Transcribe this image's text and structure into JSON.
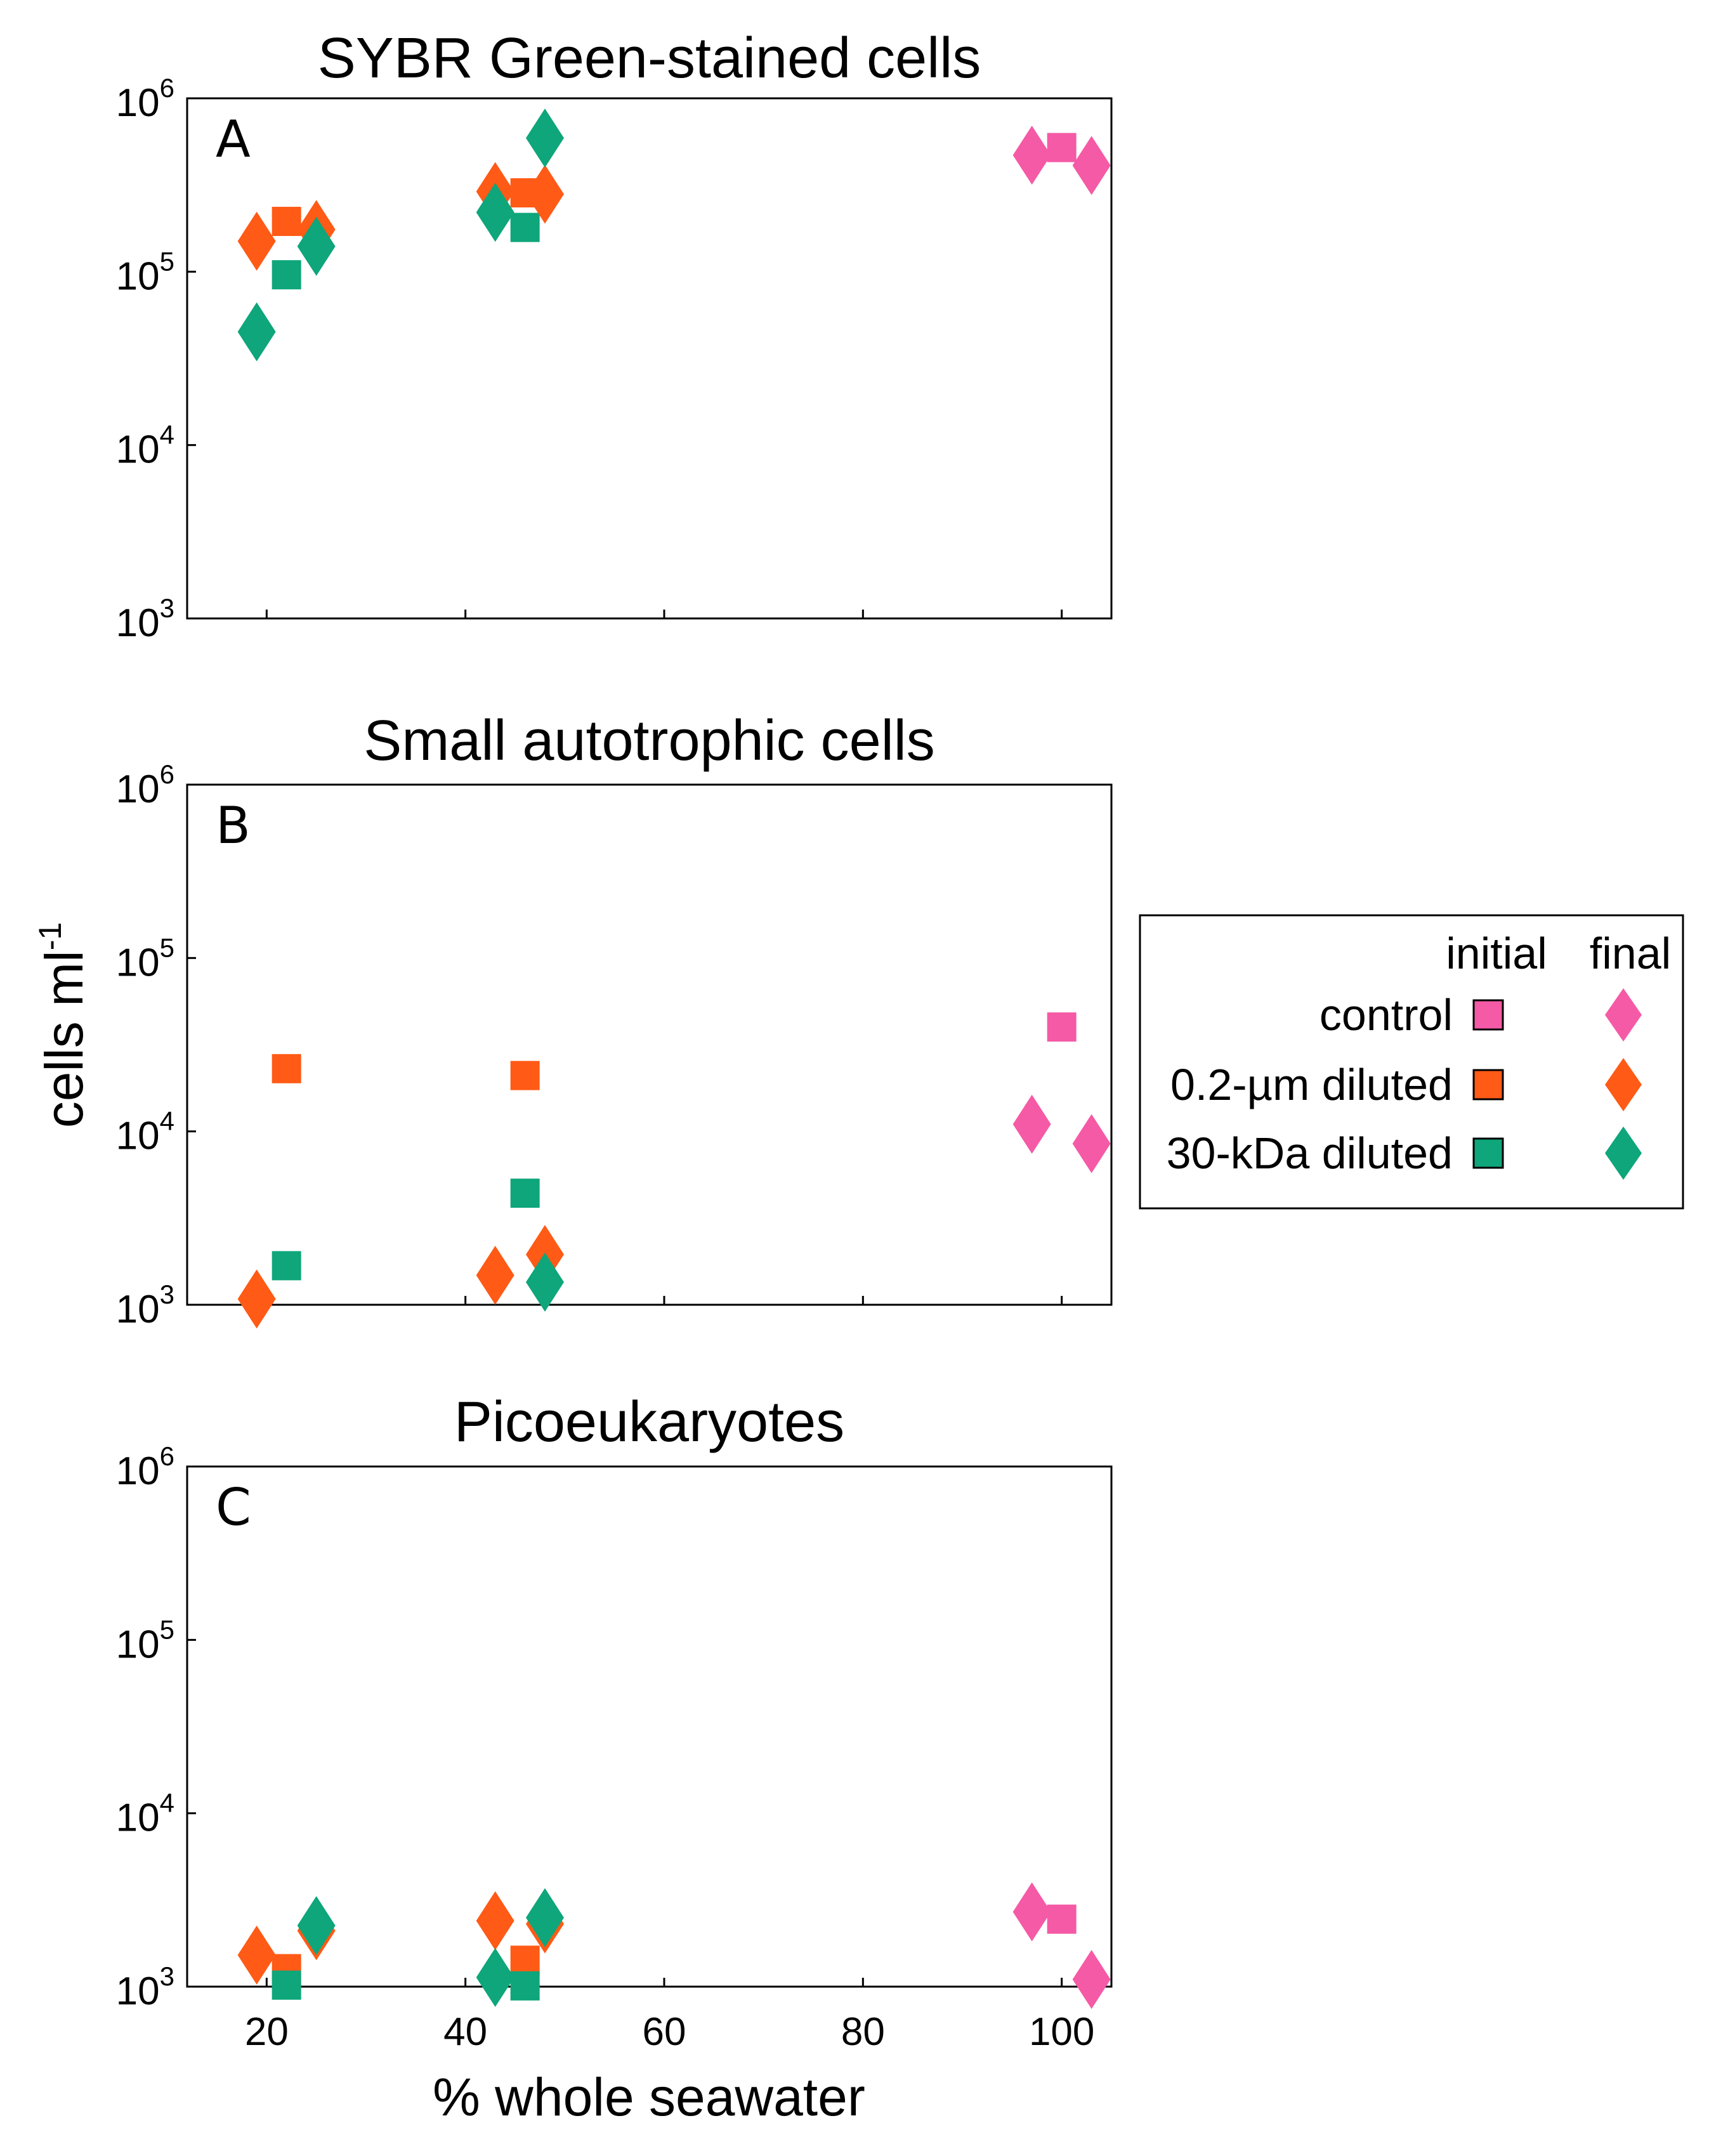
{
  "chart_data": [
    {
      "type": "scatter",
      "title": "SYBR Green-stained cells",
      "panel_label": "A",
      "xlabel": "% whole seawater",
      "ylabel": "cells ml-1",
      "xlim": [
        12,
        105
      ],
      "ylim_log10": [
        3,
        6
      ],
      "y_scale": "log",
      "series": [
        {
          "name": "control",
          "phase": "initial",
          "marker": "square",
          "color": "#f55aa6",
          "points": [
            [
              100,
              520000
            ]
          ]
        },
        {
          "name": "control",
          "phase": "final",
          "marker": "diamond",
          "color": "#f55aa6",
          "points": [
            [
              97,
              470000
            ],
            [
              103,
              410000
            ]
          ]
        },
        {
          "name": "0.2-µm diluted",
          "phase": "initial",
          "marker": "square",
          "color": "#ff5a16",
          "points": [
            [
              22,
              195000
            ],
            [
              46,
              285000
            ]
          ]
        },
        {
          "name": "0.2-µm diluted",
          "phase": "final",
          "marker": "diamond",
          "color": "#ff5a16",
          "points": [
            [
              19,
              150000
            ],
            [
              25,
              175000
            ],
            [
              43,
              290000
            ],
            [
              48,
              280000
            ]
          ]
        },
        {
          "name": "30-kDa diluted",
          "phase": "initial",
          "marker": "square",
          "color": "#0ea67a",
          "points": [
            [
              22,
              96000
            ],
            [
              46,
              180000
            ]
          ]
        },
        {
          "name": "30-kDa diluted",
          "phase": "final",
          "marker": "diamond",
          "color": "#0ea67a",
          "points": [
            [
              19,
              45000
            ],
            [
              25,
              140000
            ],
            [
              43,
              220000
            ],
            [
              48,
              590000
            ]
          ]
        }
      ]
    },
    {
      "type": "scatter",
      "title": "Small autotrophic cells",
      "panel_label": "B",
      "xlabel": "% whole seawater",
      "ylabel": "cells ml-1",
      "xlim": [
        12,
        105
      ],
      "ylim_log10": [
        3,
        6
      ],
      "y_scale": "log",
      "series": [
        {
          "name": "control",
          "phase": "initial",
          "marker": "square",
          "color": "#f55aa6",
          "points": [
            [
              100,
              40000
            ]
          ]
        },
        {
          "name": "control",
          "phase": "final",
          "marker": "diamond",
          "color": "#f55aa6",
          "points": [
            [
              97,
              11000
            ],
            [
              103,
              8500
            ]
          ]
        },
        {
          "name": "0.2-µm diluted",
          "phase": "initial",
          "marker": "square",
          "color": "#ff5a16",
          "points": [
            [
              22,
              23000
            ],
            [
              46,
              21000
            ]
          ]
        },
        {
          "name": "0.2-µm diluted",
          "phase": "final",
          "marker": "diamond",
          "color": "#ff5a16",
          "points": [
            [
              19,
              1080
            ],
            [
              43,
              1480
            ],
            [
              48,
              1950
            ]
          ]
        },
        {
          "name": "30-kDa diluted",
          "phase": "initial",
          "marker": "square",
          "color": "#0ea67a",
          "points": [
            [
              22,
              1680
            ],
            [
              46,
              4400
            ]
          ]
        },
        {
          "name": "30-kDa diluted",
          "phase": "final",
          "marker": "diamond",
          "color": "#0ea67a",
          "points": [
            [
              48,
              1350
            ]
          ]
        }
      ]
    },
    {
      "type": "scatter",
      "title": "Picoeukaryotes",
      "panel_label": "C",
      "xlabel": "% whole seawater",
      "ylabel": "cells ml-1",
      "xlim": [
        12,
        105
      ],
      "ylim_log10": [
        3,
        6
      ],
      "y_scale": "log",
      "series": [
        {
          "name": "control",
          "phase": "initial",
          "marker": "square",
          "color": "#f55aa6",
          "points": [
            [
              100,
              2450
            ]
          ]
        },
        {
          "name": "control",
          "phase": "final",
          "marker": "diamond",
          "color": "#f55aa6",
          "points": [
            [
              97,
              2700
            ],
            [
              103,
              1100
            ]
          ]
        },
        {
          "name": "0.2-µm diluted",
          "phase": "initial",
          "marker": "square",
          "color": "#ff5a16",
          "points": [
            [
              22,
              1270
            ],
            [
              46,
              1420
            ]
          ]
        },
        {
          "name": "0.2-µm diluted",
          "phase": "final",
          "marker": "diamond",
          "color": "#ff5a16",
          "points": [
            [
              19,
              1520
            ],
            [
              25,
              2100
            ],
            [
              43,
              2400
            ],
            [
              48,
              2300
            ]
          ]
        },
        {
          "name": "30-kDa diluted",
          "phase": "initial",
          "marker": "square",
          "color": "#0ea67a",
          "points": [
            [
              22,
              1020
            ],
            [
              46,
              1010
            ]
          ]
        },
        {
          "name": "30-kDa diluted",
          "phase": "final",
          "marker": "diamond",
          "color": "#0ea67a",
          "points": [
            [
              25,
              2250
            ],
            [
              43,
              1130
            ],
            [
              48,
              2500
            ]
          ]
        }
      ]
    }
  ],
  "axes": {
    "x_ticks": [
      "20",
      "40",
      "60",
      "80",
      "100"
    ],
    "x_tick_values": [
      20,
      40,
      60,
      80,
      100
    ],
    "y_ticks": [
      {
        "base": "10",
        "exp": "3"
      },
      {
        "base": "10",
        "exp": "4"
      },
      {
        "base": "10",
        "exp": "5"
      },
      {
        "base": "10",
        "exp": "6"
      }
    ],
    "xlabel": "% whole seawater",
    "ylabel_main": "cells ml",
    "ylabel_sup": "-1"
  },
  "legend": {
    "placement": "right",
    "col_initial": "initial",
    "col_final": "final",
    "rows": [
      {
        "label": "control",
        "color": "#f55aa6"
      },
      {
        "label": "0.2-µm diluted",
        "color": "#ff5a16"
      },
      {
        "label": "30-kDa diluted",
        "color": "#0ea67a"
      }
    ]
  }
}
